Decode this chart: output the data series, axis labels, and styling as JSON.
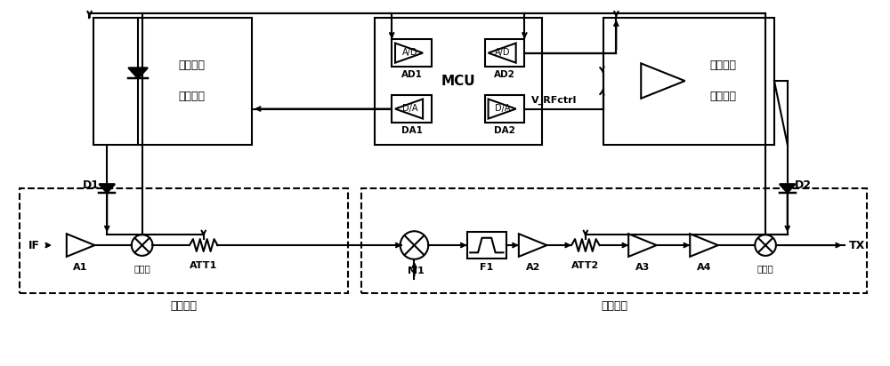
{
  "bg_color": "#ffffff",
  "line_color": "#000000",
  "lw": 1.5,
  "fig_width": 10.0,
  "fig_height": 4.12,
  "labels": {
    "IF": "IF",
    "TX": "TX",
    "A1": "A1",
    "A2": "A2",
    "A3": "A3",
    "A4": "A4",
    "ATT1": "ATT1",
    "ATT2": "ATT2",
    "M1": "M1",
    "F1": "F1",
    "D1": "D1",
    "D2": "D2",
    "AD1": "AD1",
    "AD2": "AD2",
    "DA1": "DA1",
    "DA2": "DA2",
    "MCU": "MCU",
    "V_RFctrl": "V_RFctrl",
    "coupler1": "耦合器",
    "coupler2": "耦合器",
    "IF_unit": "中频单元",
    "RF_unit": "射频单元",
    "IF_ctrl_line1": "中频功率",
    "IF_ctrl_line2": "控制电路",
    "RF_ctrl_line1": "射频功率",
    "RF_ctrl_line2": "控制电路"
  }
}
